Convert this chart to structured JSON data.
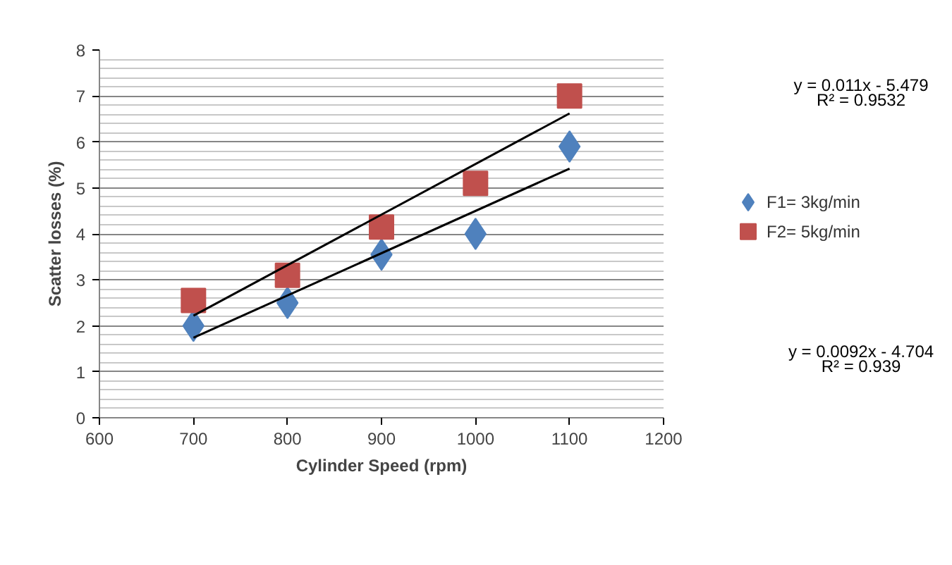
{
  "chart_data": {
    "type": "scatter",
    "xlabel": "Cylinder Speed (rpm)",
    "ylabel": "Scatter losses (%)",
    "xlim": [
      600,
      1200
    ],
    "xticks": [
      600,
      700,
      800,
      900,
      1000,
      1100,
      1200
    ],
    "ylim": [
      0,
      8
    ],
    "yticks": [
      0,
      1,
      2,
      3,
      4,
      5,
      6,
      7,
      8
    ],
    "grid": "y",
    "legend": "right",
    "series": [
      {
        "name": "F1= 3kg/min",
        "color": "#4f81bd",
        "marker": "diamond",
        "x": [
          700,
          800,
          900,
          1000,
          1100
        ],
        "values": [
          2.0,
          2.5,
          3.55,
          4.0,
          5.9
        ]
      },
      {
        "name": "F2= 5kg/min",
        "color": "#c0504d",
        "marker": "square",
        "x": [
          700,
          800,
          900,
          1000,
          1100
        ],
        "values": [
          2.55,
          3.1,
          4.15,
          5.1,
          7.0
        ]
      },
      {
        "type": "line",
        "color": "#000000",
        "x": [
          700,
          1100
        ],
        "values": [
          1.74,
          5.42
        ]
      },
      {
        "type": "line",
        "color": "#000000",
        "x": [
          700,
          1100
        ],
        "values": [
          2.22,
          6.62
        ]
      }
    ],
    "annotations": [
      "y = 0.011x - 5.479\nR² = 0.9532",
      "y = 0.0092x - 4.704\nR² = 0.939"
    ]
  }
}
